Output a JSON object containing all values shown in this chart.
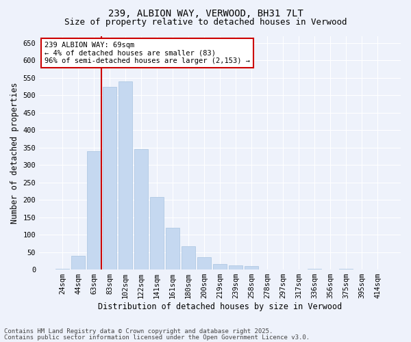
{
  "title_line1": "239, ALBION WAY, VERWOOD, BH31 7LT",
  "title_line2": "Size of property relative to detached houses in Verwood",
  "xlabel": "Distribution of detached houses by size in Verwood",
  "ylabel": "Number of detached properties",
  "categories": [
    "24sqm",
    "44sqm",
    "63sqm",
    "83sqm",
    "102sqm",
    "122sqm",
    "141sqm",
    "161sqm",
    "180sqm",
    "200sqm",
    "219sqm",
    "239sqm",
    "258sqm",
    "278sqm",
    "297sqm",
    "317sqm",
    "336sqm",
    "356sqm",
    "375sqm",
    "395sqm",
    "414sqm"
  ],
  "values": [
    3,
    40,
    340,
    524,
    540,
    345,
    208,
    120,
    67,
    35,
    15,
    12,
    10,
    0,
    0,
    0,
    2,
    0,
    2,
    0,
    0
  ],
  "bar_color": "#c5d8f0",
  "bar_edge_color": "#a8c4e0",
  "vline_x_index": 2,
  "vline_color": "#cc0000",
  "annotation_text": "239 ALBION WAY: 69sqm\n← 4% of detached houses are smaller (83)\n96% of semi-detached houses are larger (2,153) →",
  "annotation_box_facecolor": "#ffffff",
  "annotation_box_edgecolor": "#cc0000",
  "ylim": [
    0,
    670
  ],
  "yticks": [
    0,
    50,
    100,
    150,
    200,
    250,
    300,
    350,
    400,
    450,
    500,
    550,
    600,
    650
  ],
  "footer_line1": "Contains HM Land Registry data © Crown copyright and database right 2025.",
  "footer_line2": "Contains public sector information licensed under the Open Government Licence v3.0.",
  "background_color": "#eef2fb",
  "plot_background_color": "#eef2fb",
  "grid_color": "#ffffff",
  "title_fontsize": 10,
  "subtitle_fontsize": 9,
  "axis_label_fontsize": 8.5,
  "tick_fontsize": 7.5,
  "annotation_fontsize": 7.5,
  "footer_fontsize": 6.5
}
